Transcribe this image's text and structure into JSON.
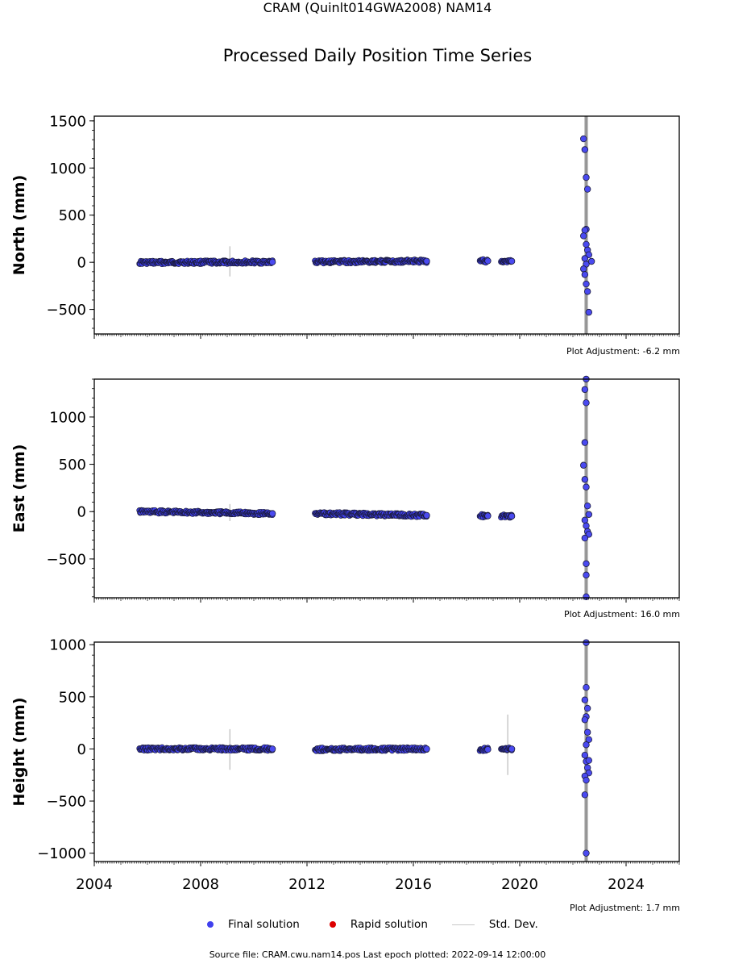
{
  "title": "CRAM (Quinlt014GWA2008) NAM14",
  "subtitle": "Processed Daily Position Time Series",
  "legend": {
    "final": "Final solution",
    "rapid": "Rapid solution",
    "std": "Std. Dev.",
    "final_color": "#4040ee",
    "rapid_color": "#dd0000",
    "std_color": "#c8c8c8"
  },
  "footer": "Source file: CRAM.cwu.nam14.pos  Last epoch plotted: 2022-09-14 12:00:00",
  "chart_data": [
    {
      "type": "scatter",
      "ylabel": "North (mm)",
      "adjustment": "Plot Adjustment: -6.2 mm",
      "ylim": [
        -760,
        1550
      ],
      "yticks": [
        -500,
        0,
        500,
        1000,
        1500
      ],
      "ytick_labels": [
        "−500",
        "0",
        "500",
        "1000",
        "1500"
      ],
      "xlim": [
        2004,
        2026
      ],
      "segments": [
        {
          "x0": 2005.7,
          "x1": 2010.7,
          "y0": -2,
          "y1": 3
        },
        {
          "x0": 2012.3,
          "x1": 2016.5,
          "y0": 5,
          "y1": 12
        },
        {
          "x0": 2018.5,
          "x1": 2018.8,
          "y0": 15,
          "y1": 15
        },
        {
          "x0": 2019.3,
          "x1": 2019.7,
          "y0": 14,
          "y1": 12
        }
      ],
      "outliers": {
        "x": [
          2022.4,
          2022.45,
          2022.5,
          2022.55,
          2022.5,
          2022.45,
          2022.4,
          2022.5,
          2022.55,
          2022.6,
          2022.45,
          2022.5,
          2022.4,
          2022.45,
          2022.5,
          2022.55,
          2022.6,
          2022.7
        ],
        "y": [
          1310,
          1195,
          900,
          775,
          350,
          340,
          280,
          190,
          130,
          80,
          40,
          -20,
          -70,
          -130,
          -230,
          -310,
          -530,
          10
        ]
      },
      "stdev_spikes": [
        {
          "x": 2009.1,
          "lo": -150,
          "hi": 170
        },
        {
          "x": 2022.5,
          "lo": -760,
          "hi": 1550
        }
      ]
    },
    {
      "type": "scatter",
      "ylabel": "East (mm)",
      "adjustment": "Plot Adjustment: 16.0 mm",
      "ylim": [
        -910,
        1400
      ],
      "yticks": [
        -500,
        0,
        500,
        1000
      ],
      "ytick_labels": [
        "−500",
        "0",
        "500",
        "1000"
      ],
      "xlim": [
        2004,
        2026
      ],
      "segments": [
        {
          "x0": 2005.7,
          "x1": 2010.7,
          "y0": 0,
          "y1": -20
        },
        {
          "x0": 2012.3,
          "x1": 2016.5,
          "y0": -20,
          "y1": -40
        },
        {
          "x0": 2018.5,
          "x1": 2018.8,
          "y0": -42,
          "y1": -45
        },
        {
          "x0": 2019.3,
          "x1": 2019.7,
          "y0": -45,
          "y1": -48
        }
      ],
      "outliers": {
        "x": [
          2022.5,
          2022.45,
          2022.5,
          2022.45,
          2022.4,
          2022.45,
          2022.5,
          2022.55,
          2022.6,
          2022.45,
          2022.5,
          2022.55,
          2022.6,
          2022.45,
          2022.5,
          2022.5,
          2022.5
        ],
        "y": [
          1400,
          1290,
          1150,
          730,
          490,
          340,
          260,
          60,
          -30,
          -90,
          -150,
          -210,
          -240,
          -280,
          -550,
          -670,
          -900
        ]
      },
      "stdev_spikes": [
        {
          "x": 2009.1,
          "lo": -100,
          "hi": 80
        },
        {
          "x": 2022.5,
          "lo": -910,
          "hi": 1400
        }
      ]
    },
    {
      "type": "scatter",
      "ylabel": "Height (mm)",
      "adjustment": "Plot Adjustment: 1.7 mm",
      "ylim": [
        -1080,
        1025
      ],
      "yticks": [
        -1000,
        -500,
        0,
        500,
        1000
      ],
      "ytick_labels": [
        "−1000",
        "−500",
        "0",
        "500",
        "1000"
      ],
      "xlim": [
        2004,
        2026
      ],
      "xticks": [
        2004,
        2008,
        2012,
        2016,
        2020,
        2024
      ],
      "xtick_labels": [
        "2004",
        "2008",
        "2012",
        "2016",
        "2020",
        "2024"
      ],
      "segments": [
        {
          "x0": 2005.7,
          "x1": 2010.7,
          "y0": 0,
          "y1": 0
        },
        {
          "x0": 2012.3,
          "x1": 2016.5,
          "y0": -5,
          "y1": 0
        },
        {
          "x0": 2018.5,
          "x1": 2018.8,
          "y0": -5,
          "y1": -5
        },
        {
          "x0": 2019.3,
          "x1": 2019.7,
          "y0": -10,
          "y1": 0
        }
      ],
      "outliers": {
        "x": [
          2022.5,
          2022.5,
          2022.45,
          2022.55,
          2022.5,
          2022.45,
          2022.55,
          2022.6,
          2022.5,
          2022.45,
          2022.5,
          2022.55,
          2022.6,
          2022.45,
          2022.5,
          2022.45,
          2022.5,
          2022.6
        ],
        "y": [
          1020,
          590,
          470,
          390,
          310,
          280,
          160,
          90,
          40,
          -60,
          -120,
          -180,
          -230,
          -260,
          -300,
          -440,
          -1000,
          -110
        ]
      },
      "stdev_spikes": [
        {
          "x": 2009.1,
          "lo": -200,
          "hi": 190
        },
        {
          "x": 2019.55,
          "lo": -250,
          "hi": 330
        },
        {
          "x": 2022.5,
          "lo": -1080,
          "hi": 1025
        }
      ]
    }
  ]
}
